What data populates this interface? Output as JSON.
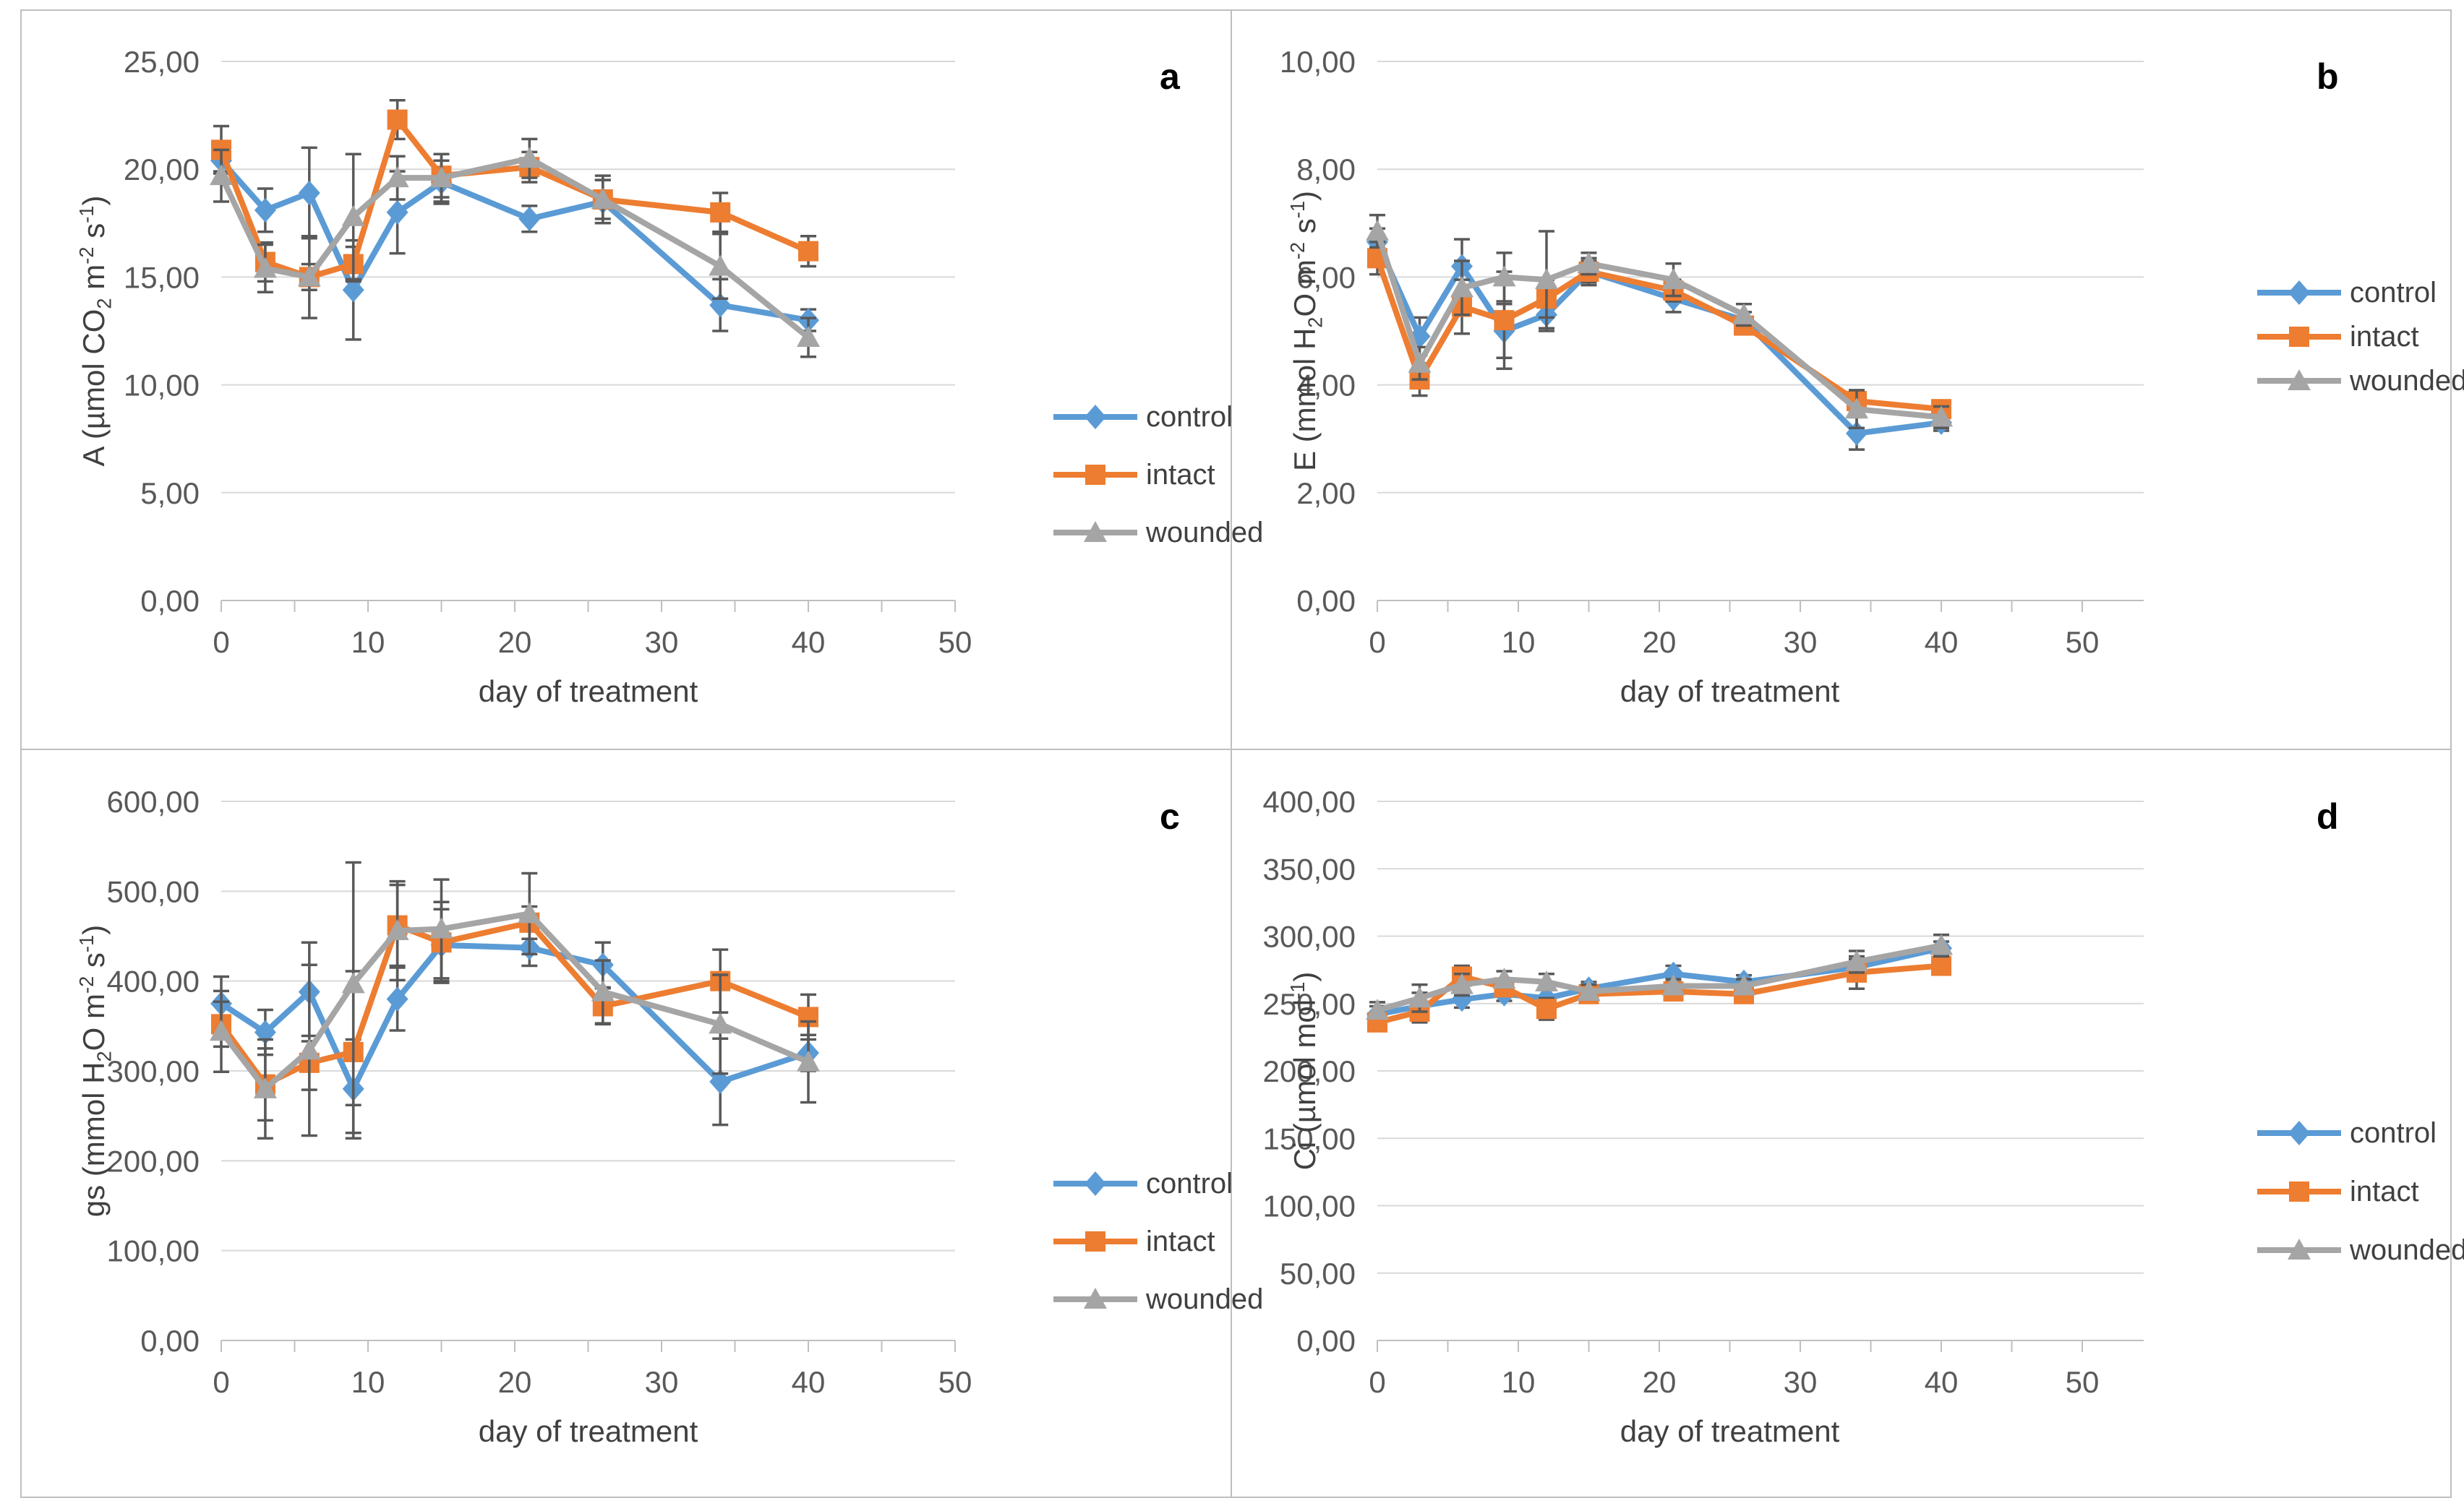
{
  "figure": {
    "background": "#FFFFFF",
    "border_color": "#BFBFBF"
  },
  "colors": {
    "control": "#5B9BD5",
    "intact": "#ED7D31",
    "wounded": "#A5A5A5",
    "error_bar": "#595959",
    "gridline": "#D9D9D9",
    "axis_line": "#BFBFBF",
    "tick_text": "#595959",
    "panel_letter": "#000000"
  },
  "chart_data": [
    {
      "type": "line",
      "panel_label": "a",
      "xlabel": "day of treatment",
      "ylabel_parts": [
        {
          "t": "A (µmol CO"
        },
        {
          "t": "2",
          "sub": true
        },
        {
          "t": " m"
        },
        {
          "t": "-2",
          "sup": true
        },
        {
          "t": " s"
        },
        {
          "t": "-1",
          "sup": true
        },
        {
          "t": ")"
        }
      ],
      "x": [
        0,
        3,
        6,
        9,
        12,
        15,
        21,
        26,
        34,
        40
      ],
      "xlim": [
        0,
        50
      ],
      "xticks": [
        "0",
        "10",
        "20",
        "30",
        "40",
        "50"
      ],
      "ylim": [
        0,
        25
      ],
      "ystep": 5,
      "yticks": [
        "0,00",
        "5,00",
        "10,00",
        "15,00",
        "20,00",
        "25,00"
      ],
      "grid": true,
      "legend_position": "right",
      "series": [
        {
          "name": "control",
          "marker": "diamond",
          "color_key": "control",
          "values": [
            20.4,
            18.1,
            18.9,
            14.4,
            18.0,
            19.4,
            17.7,
            18.5,
            13.7,
            13.0
          ],
          "errors": [
            0.5,
            1.0,
            2.1,
            2.3,
            1.9,
            1.0,
            0.6,
            1.0,
            1.2,
            0.5
          ]
        },
        {
          "name": "intact",
          "marker": "square",
          "color_key": "intact",
          "values": [
            20.9,
            15.7,
            15.0,
            15.6,
            22.3,
            19.7,
            20.1,
            18.6,
            18.0,
            16.2
          ],
          "errors": [
            1.1,
            0.9,
            0.6,
            0.8,
            0.9,
            1.0,
            0.7,
            1.1,
            0.9,
            0.7
          ]
        },
        {
          "name": "wounded",
          "marker": "triangle",
          "color_key": "wounded",
          "values": [
            19.7,
            15.4,
            15.0,
            17.8,
            19.6,
            19.6,
            20.5,
            18.6,
            15.5,
            12.2
          ],
          "errors": [
            1.2,
            1.1,
            1.9,
            2.9,
            1.0,
            1.1,
            0.9,
            0.9,
            1.5,
            0.9
          ]
        }
      ]
    },
    {
      "type": "line",
      "panel_label": "b",
      "xlabel": "day of treatment",
      "ylabel_parts": [
        {
          "t": "E (mmol H"
        },
        {
          "t": "2",
          "sub": true
        },
        {
          "t": "O m"
        },
        {
          "t": "-2",
          "sup": true
        },
        {
          "t": " s"
        },
        {
          "t": "-1",
          "sup": true
        },
        {
          "t": ")"
        }
      ],
      "x": [
        0,
        3,
        6,
        9,
        12,
        15,
        21,
        26,
        34,
        40
      ],
      "xlim": [
        0,
        50
      ],
      "xticks": [
        "0",
        "10",
        "20",
        "30",
        "40",
        "50"
      ],
      "ylim": [
        0,
        10
      ],
      "ystep": 2,
      "yticks": [
        "0,00",
        "2,00",
        "4,00",
        "6,00",
        "8,00",
        "10,00"
      ],
      "grid": true,
      "legend_position": "right",
      "series": [
        {
          "name": "control",
          "marker": "diamond",
          "color_key": "control",
          "values": [
            6.65,
            4.9,
            6.2,
            5.0,
            5.3,
            6.1,
            5.6,
            5.2,
            3.1,
            3.3
          ],
          "errors": [
            0.25,
            0.35,
            0.5,
            0.5,
            0.3,
            0.25,
            0.25,
            0.15,
            0.3,
            0.15
          ]
        },
        {
          "name": "intact",
          "marker": "square",
          "color_key": "intact",
          "values": [
            6.35,
            4.1,
            5.45,
            5.2,
            5.6,
            6.1,
            5.75,
            5.1,
            3.7,
            3.55
          ],
          "errors": [
            0.3,
            0.3,
            0.5,
            0.9,
            0.35,
            0.2,
            0.2,
            0.15,
            0.2,
            0.15
          ]
        },
        {
          "name": "wounded",
          "marker": "triangle",
          "color_key": "wounded",
          "values": [
            6.85,
            4.4,
            5.8,
            6.0,
            5.95,
            6.25,
            5.95,
            5.3,
            3.55,
            3.4
          ],
          "errors": [
            0.3,
            0.3,
            0.5,
            0.45,
            0.9,
            0.2,
            0.3,
            0.2,
            0.35,
            0.2
          ]
        }
      ]
    },
    {
      "type": "line",
      "panel_label": "c",
      "xlabel": "day of treatment",
      "ylabel_parts": [
        {
          "t": "gs (mmol H"
        },
        {
          "t": "2",
          "sub": true
        },
        {
          "t": "O m"
        },
        {
          "t": "-2",
          "sup": true
        },
        {
          "t": " s"
        },
        {
          "t": "-1",
          "sup": true
        },
        {
          "t": ")"
        }
      ],
      "x": [
        0,
        3,
        6,
        9,
        12,
        15,
        21,
        26,
        34,
        40
      ],
      "xlim": [
        0,
        50
      ],
      "xticks": [
        "0",
        "10",
        "20",
        "30",
        "40",
        "50"
      ],
      "ylim": [
        0,
        600
      ],
      "ystep": 100,
      "yticks": [
        "0,00",
        "100,00",
        "200,00",
        "300,00",
        "400,00",
        "500,00",
        "600,00"
      ],
      "grid": true,
      "legend_position": "right",
      "series": [
        {
          "name": "control",
          "marker": "diamond",
          "color_key": "control",
          "values": [
            375,
            343,
            388,
            280,
            380,
            440,
            437,
            418,
            288,
            320
          ],
          "errors": [
            30,
            25,
            55,
            55,
            35,
            40,
            20,
            25,
            48,
            20
          ]
        },
        {
          "name": "intact",
          "marker": "square",
          "color_key": "intact",
          "values": [
            352,
            285,
            309,
            321,
            462,
            443,
            465,
            372,
            400,
            360
          ],
          "errors": [
            25,
            40,
            30,
            90,
            45,
            45,
            18,
            20,
            35,
            25
          ]
        },
        {
          "name": "wounded",
          "marker": "triangle",
          "color_key": "wounded",
          "values": [
            344,
            280,
            323,
            397,
            456,
            458,
            475,
            388,
            352,
            310
          ],
          "errors": [
            45,
            55,
            95,
            135,
            55,
            55,
            45,
            35,
            55,
            45
          ]
        }
      ]
    },
    {
      "type": "line",
      "panel_label": "d",
      "xlabel": "day of treatment",
      "ylabel_parts": [
        {
          "t": "Ci (µmol mol"
        },
        {
          "t": "-1",
          "sup": true
        },
        {
          "t": ")"
        }
      ],
      "x": [
        0,
        3,
        6,
        9,
        12,
        15,
        21,
        26,
        34,
        40
      ],
      "xlim": [
        0,
        50
      ],
      "xticks": [
        "0",
        "10",
        "20",
        "30",
        "40",
        "50"
      ],
      "ylim": [
        0,
        400
      ],
      "ystep": 50,
      "yticks": [
        "0,00",
        "50,00",
        "100,00",
        "150,00",
        "200,00",
        "250,00",
        "300,00",
        "350,00",
        "400,00"
      ],
      "grid": true,
      "legend_position": "right",
      "series": [
        {
          "name": "control",
          "marker": "diamond",
          "color_key": "control",
          "values": [
            242,
            248,
            253,
            257,
            254,
            261,
            272,
            266,
            277,
            291
          ],
          "errors": [
            6,
            10,
            6,
            5,
            8,
            5,
            6,
            5,
            6,
            5
          ]
        },
        {
          "name": "intact",
          "marker": "square",
          "color_key": "intact",
          "values": [
            236,
            244,
            270,
            262,
            246,
            257,
            259,
            257,
            273,
            278
          ],
          "errors": [
            6,
            8,
            8,
            5,
            8,
            5,
            5,
            5,
            12,
            5
          ]
        },
        {
          "name": "wounded",
          "marker": "triangle",
          "color_key": "wounded",
          "values": [
            245,
            254,
            264,
            268,
            266,
            259,
            263,
            263,
            281,
            293
          ],
          "errors": [
            6,
            10,
            8,
            6,
            6,
            5,
            5,
            5,
            8,
            8
          ]
        }
      ]
    }
  ]
}
